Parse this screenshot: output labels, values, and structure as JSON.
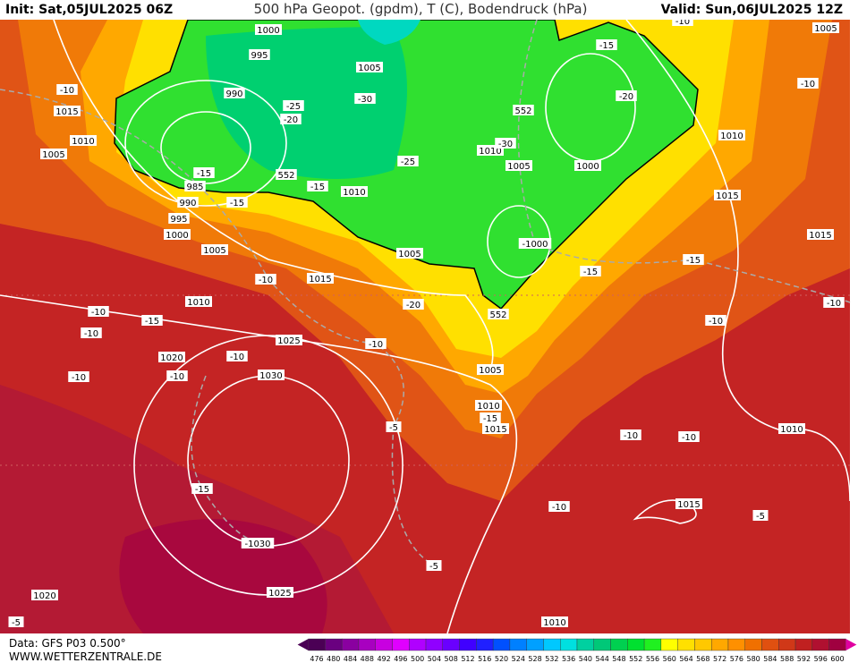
{
  "header": {
    "init": "Init: Sat,05JUL2025 06Z",
    "title": "500 hPa Geopot. (gpdm), T (C), Bodendruck (hPa)",
    "valid": "Valid: Sun,06JUL2025 12Z"
  },
  "footer": {
    "data": "Data: GFS P03 0.500°",
    "site": "WWW.WETTERZENTRALE.DE"
  },
  "colorbar": {
    "labels": [
      476,
      480,
      484,
      488,
      492,
      496,
      500,
      504,
      508,
      512,
      516,
      520,
      524,
      528,
      532,
      536,
      540,
      544,
      548,
      552,
      556,
      560,
      564,
      568,
      572,
      576,
      580,
      584,
      588,
      592,
      596,
      600
    ],
    "colors": [
      "#4b0055",
      "#6a0080",
      "#8a00a0",
      "#a800c0",
      "#c800e0",
      "#e000ff",
      "#b000ff",
      "#9000ff",
      "#6a00ff",
      "#4000ff",
      "#2020ff",
      "#0050ff",
      "#0080ff",
      "#00a0ff",
      "#00c8ff",
      "#00e0e0",
      "#00d0a0",
      "#00c878",
      "#00d050",
      "#00e030",
      "#20f020",
      "#ffff00",
      "#ffe000",
      "#ffc800",
      "#ffa800",
      "#ff9000",
      "#f07000",
      "#e05010",
      "#d03818",
      "#c02020",
      "#b01030",
      "#a00040"
    ]
  },
  "map_labels": [
    "1000",
    "995",
    "990",
    "985",
    "990",
    "995",
    "1000",
    "1005",
    "1010",
    "1015",
    "1010",
    "1005",
    "-10",
    "1005",
    "-30",
    "-25",
    "-20",
    "-25",
    "552",
    "-15",
    "1010",
    "-15",
    "-15",
    "1005",
    "1015",
    "-10",
    "-20",
    "552",
    "-15",
    "-20",
    "1005",
    "-10",
    "-10",
    "1010",
    "1010",
    "-30",
    "1005",
    "1000",
    "1015",
    "1015",
    "-1000",
    "-15",
    "-15",
    "552",
    "-10",
    "-10",
    "-10",
    "-15",
    "-10",
    "1025",
    "-10",
    "1020",
    "-10",
    "-10",
    "-10",
    "1030",
    "1005",
    "1010",
    "-15",
    "1015",
    "-5",
    "-10",
    "-10",
    "1010",
    "-15",
    "1015",
    "-10",
    "-5",
    "-1030",
    "-5",
    "1020",
    "1025",
    "-5",
    "1010"
  ]
}
